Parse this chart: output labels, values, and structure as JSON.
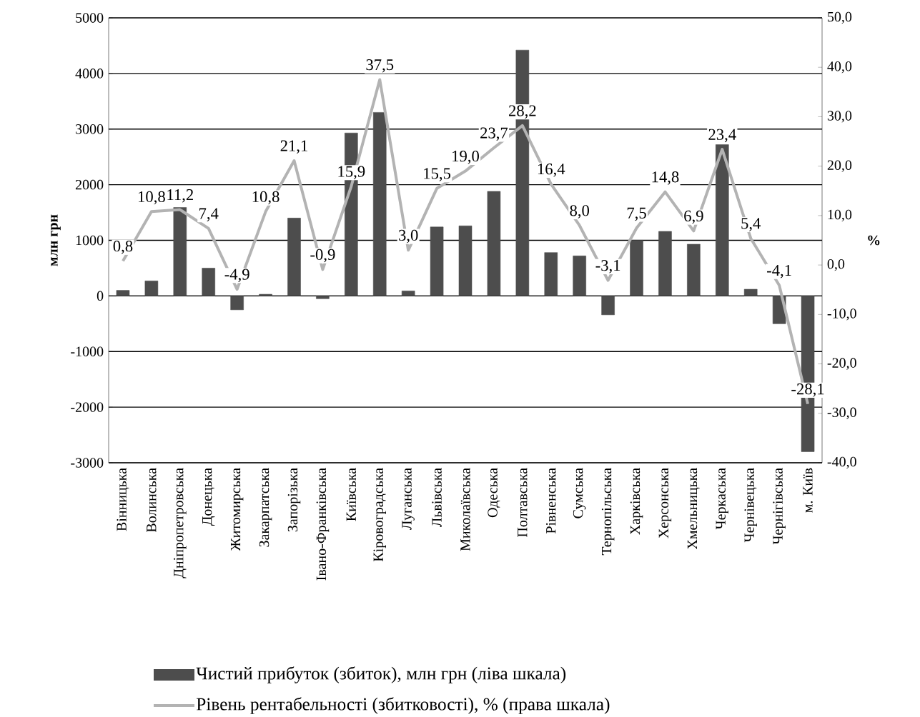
{
  "chart_data": {
    "type": "bar",
    "ylabel": "млн грн",
    "y2label": "%",
    "categories": [
      "Вінницька",
      "Волинська",
      "Дніпропетровська",
      "Донецька",
      "Житомирська",
      "Закарпатська",
      "Запорізька",
      "Івано-Франківська",
      "Київська",
      "Кіровоградська",
      "Луганська",
      "Львівська",
      "Миколаївська",
      "Одеська",
      "Полтавська",
      "Рівненська",
      "Сумська",
      "Тернопільська",
      "Харківська",
      "Херсонська",
      "Хмельницька",
      "Черкаська",
      "Чернівецька",
      "Чернігівська",
      "м. Київ"
    ],
    "series": [
      {
        "name": "Чистий прибуток (збиток), млн грн (ліва шкала)",
        "color": "#4d4d4d",
        "values": [
          100,
          270,
          1590,
          500,
          -250,
          30,
          1400,
          -50,
          2930,
          3300,
          90,
          1240,
          1260,
          1880,
          4420,
          780,
          720,
          -340,
          1000,
          1160,
          930,
          2720,
          120,
          -500,
          -2800
        ]
      },
      {
        "name": "Рівень рентабельності (збитковості), % (права шкала)",
        "type": "line",
        "axis": "y2",
        "color": "#b3b3b3",
        "marker": "none",
        "values": [
          0.8,
          10.8,
          11.2,
          7.4,
          -4.9,
          10.8,
          21.1,
          -0.9,
          15.9,
          37.5,
          3.0,
          15.5,
          19.0,
          23.7,
          28.2,
          16.4,
          8.0,
          -3.1,
          7.5,
          14.8,
          6.9,
          23.4,
          5.4,
          -4.1,
          -28.1
        ],
        "value_labels": [
          "0,8",
          "10,8",
          "11,2",
          "7,4",
          "-4,9",
          "10,8",
          "21,1",
          "-0,9",
          "15,9",
          "37,5",
          "3,0",
          "15,5",
          "19,0",
          "23,7",
          "28,2",
          "16,4",
          "8,0",
          "-3,1",
          "7,5",
          "14,8",
          "6,9",
          "23,4",
          "5,4",
          "-4,1",
          "-28,1"
        ]
      }
    ],
    "ylim": [
      -3000,
      5000
    ],
    "yticks": [
      -3000,
      -2000,
      -1000,
      0,
      1000,
      2000,
      3000,
      4000,
      5000
    ],
    "y2lim": [
      -40,
      50
    ],
    "y2ticks": [
      {
        "value": -40,
        "label": "-40,0"
      },
      {
        "value": -30,
        "label": "-30,0"
      },
      {
        "value": -20,
        "label": "-20,0"
      },
      {
        "value": -10,
        "label": "-10,0"
      },
      {
        "value": 0,
        "label": "0,0"
      },
      {
        "value": 10,
        "label": "10,0"
      },
      {
        "value": 20,
        "label": "20,0"
      },
      {
        "value": 30,
        "label": "30,0"
      },
      {
        "value": 40,
        "label": "40,0"
      },
      {
        "value": 50,
        "label": "50,0"
      }
    ],
    "grid": "y",
    "legend": "bottom"
  }
}
